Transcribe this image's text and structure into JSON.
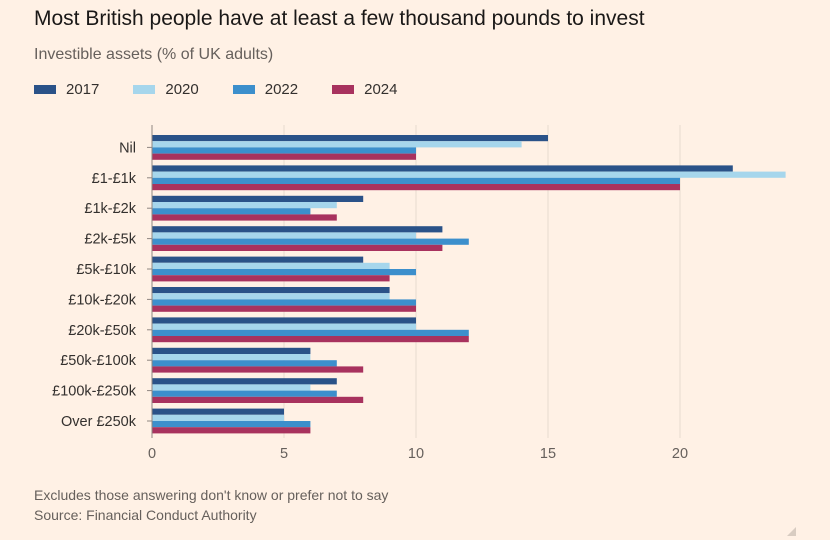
{
  "title": "Most British people have at least a few thousand pounds to invest",
  "subtitle": "Investible assets (% of UK adults)",
  "footnote": "Excludes those answering don't know or prefer not to say",
  "source": "Source: Financial Conduct Authority",
  "chart_data": {
    "type": "bar",
    "orientation": "horizontal",
    "title": "Most British people have at least a few thousand pounds to invest",
    "subtitle": "Investible assets (% of UK adults)",
    "categories": [
      "Nil",
      "£1-£1k",
      "£1k-£2k",
      "£2k-£5k",
      "£5k-£10k",
      "£10k-£20k",
      "£20k-£50k",
      "£50k-£100k",
      "£100k-£250k",
      "Over £250k"
    ],
    "series": [
      {
        "name": "2017",
        "color": "#2a5288",
        "values": [
          15,
          22,
          8,
          11,
          8,
          9,
          10,
          6,
          7,
          5
        ]
      },
      {
        "name": "2020",
        "color": "#a6d6ec",
        "values": [
          14,
          24,
          7,
          10,
          9,
          9,
          10,
          6,
          6,
          5
        ]
      },
      {
        "name": "2022",
        "color": "#3c8fcc",
        "values": [
          10,
          20,
          6,
          12,
          10,
          10,
          12,
          7,
          7,
          6
        ]
      },
      {
        "name": "2024",
        "color": "#a8325e",
        "values": [
          10,
          20,
          7,
          11,
          9,
          10,
          12,
          8,
          8,
          6
        ]
      }
    ],
    "xticks": [
      0,
      5,
      10,
      15,
      20
    ],
    "xlim": [
      0,
      24
    ],
    "grid": true,
    "legend_position": "top-left"
  }
}
